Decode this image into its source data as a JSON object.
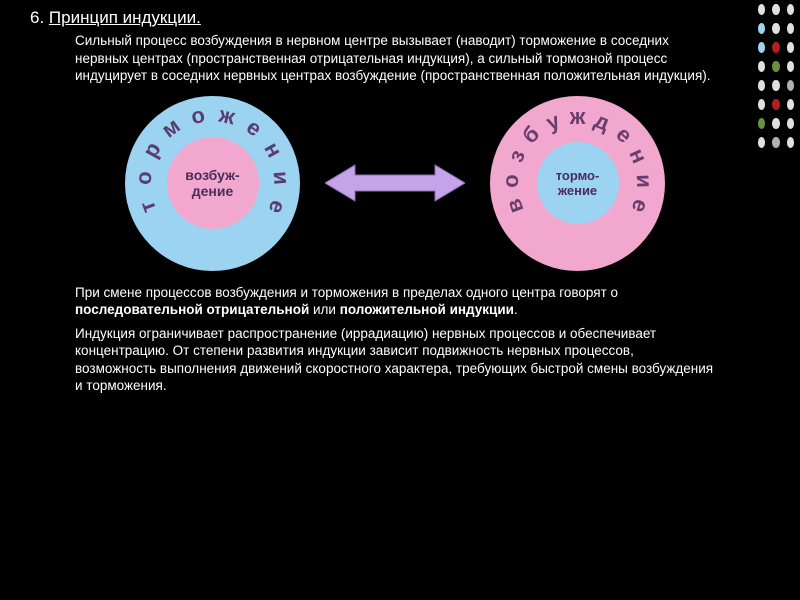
{
  "title_num": "6. ",
  "title_text": "Принцип индукции.",
  "para1": "Сильный процесс возбуждения в нервном центре вызывает (наводит) торможение в соседних нервных центрах (пространственная отрицательная индукция), а сильный тормозной процесс индуцирует в соседних нервных центрах возбуждение (пространственная положительная индукция).",
  "para2_a": "При смене процессов возбуждения и торможения в пределах одного центра говорят о ",
  "para2_b": "последовательной отрицательной ",
  "para2_c": "или ",
  "para2_d": "положительной индукции",
  "para2_e": ".",
  "para3": "Индукция ограничивает распространение (иррадиацию) нервных процессов и обеспечивает концентрацию. От степени развития индукции зависит подвижность нервных процессов, возможность выполнения движений скоростного характера, требующих быстрой смены возбуждения и торможения.",
  "diagram": {
    "left_ring": {
      "outer_color": "#9cd3f0",
      "inner_color": "#f2a8ce",
      "outer_size": 175,
      "inner_size": 92,
      "inner_text_1": "возбуж-",
      "inner_text_2": "дение",
      "inner_fontsize": 14,
      "arc_text": "торможение",
      "arc_color": "#5a3d6e",
      "arc_fontsize": 22
    },
    "right_ring": {
      "outer_color": "#f2a8ce",
      "inner_color": "#9cd3f0",
      "outer_size": 175,
      "inner_size": 82,
      "inner_text_1": "тормо-",
      "inner_text_2": "жение",
      "inner_fontsize": 13,
      "arc_text": "возбуждение",
      "arc_color": "#6a3d6e",
      "arc_fontsize": 22
    },
    "arrow_color": "#c4a3e8",
    "arrow_stroke": "#8a6bb5"
  },
  "dots": {
    "colors": [
      [
        "#e0e0e0",
        "#e0e0e0",
        "#e0e0e0"
      ],
      [
        "#9cd3f0",
        "#e0e0e0",
        "#e0e0e0"
      ],
      [
        "#9cd3f0",
        "#b02020",
        "#e0e0e0"
      ],
      [
        "#e0e0e0",
        "#6a9040",
        "#e0e0e0"
      ],
      [
        "#e0e0e0",
        "#e0e0e0",
        "#b0b0b0"
      ],
      [
        "#e0e0e0",
        "#b02020",
        "#e0e0e0"
      ],
      [
        "#6a9040",
        "#e0e0e0",
        "#e0e0e0"
      ],
      [
        "#e0e0e0",
        "#b0b0b0",
        "#e0e0e0"
      ]
    ]
  }
}
